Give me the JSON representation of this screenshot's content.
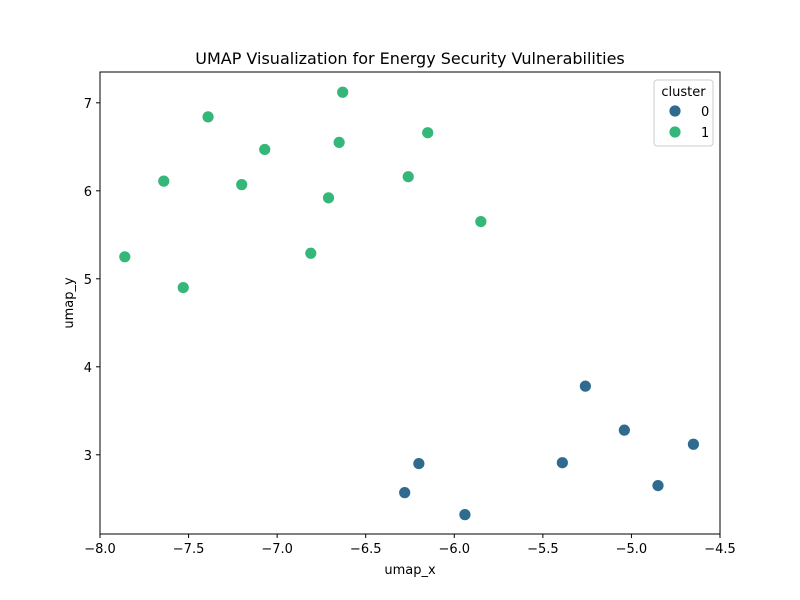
{
  "chart_data": {
    "type": "scatter",
    "title": "UMAP Visualization for Energy Security Vulnerabilities",
    "xlabel": "umap_x",
    "ylabel": "umap_y",
    "xlim": [
      -8.0,
      -4.5
    ],
    "ylim": [
      2.1,
      7.35
    ],
    "xticks": [
      -8.0,
      -7.5,
      -7.0,
      -6.5,
      -6.0,
      -5.5,
      -5.0,
      -4.5
    ],
    "xtick_labels": [
      "−8.0",
      "−7.5",
      "−7.0",
      "−6.5",
      "−6.0",
      "−5.5",
      "−5.0",
      "−4.5"
    ],
    "yticks": [
      3,
      4,
      5,
      6,
      7
    ],
    "ytick_labels": [
      "3",
      "4",
      "5",
      "6",
      "7"
    ],
    "grid": false,
    "legend": {
      "title": "cluster",
      "placement": "top-right",
      "entries": [
        {
          "label": "0",
          "color": "#2e6b8e"
        },
        {
          "label": "1",
          "color": "#35b779"
        }
      ]
    },
    "series": [
      {
        "name": "0",
        "color": "#2e6b8e",
        "points": [
          [
            -5.26,
            3.78
          ],
          [
            -5.04,
            3.28
          ],
          [
            -4.65,
            3.12
          ],
          [
            -5.39,
            2.91
          ],
          [
            -6.2,
            2.9
          ],
          [
            -4.85,
            2.65
          ],
          [
            -6.28,
            2.57
          ],
          [
            -5.94,
            2.32
          ]
        ]
      },
      {
        "name": "1",
        "color": "#35b779",
        "points": [
          [
            -6.63,
            7.12
          ],
          [
            -7.39,
            6.84
          ],
          [
            -6.15,
            6.66
          ],
          [
            -6.65,
            6.55
          ],
          [
            -7.07,
            6.47
          ],
          [
            -6.26,
            6.16
          ],
          [
            -7.64,
            6.11
          ],
          [
            -7.2,
            6.07
          ],
          [
            -6.71,
            5.92
          ],
          [
            -5.85,
            5.65
          ],
          [
            -6.81,
            5.29
          ],
          [
            -7.86,
            5.25
          ],
          [
            -7.53,
            4.9
          ]
        ]
      }
    ]
  }
}
